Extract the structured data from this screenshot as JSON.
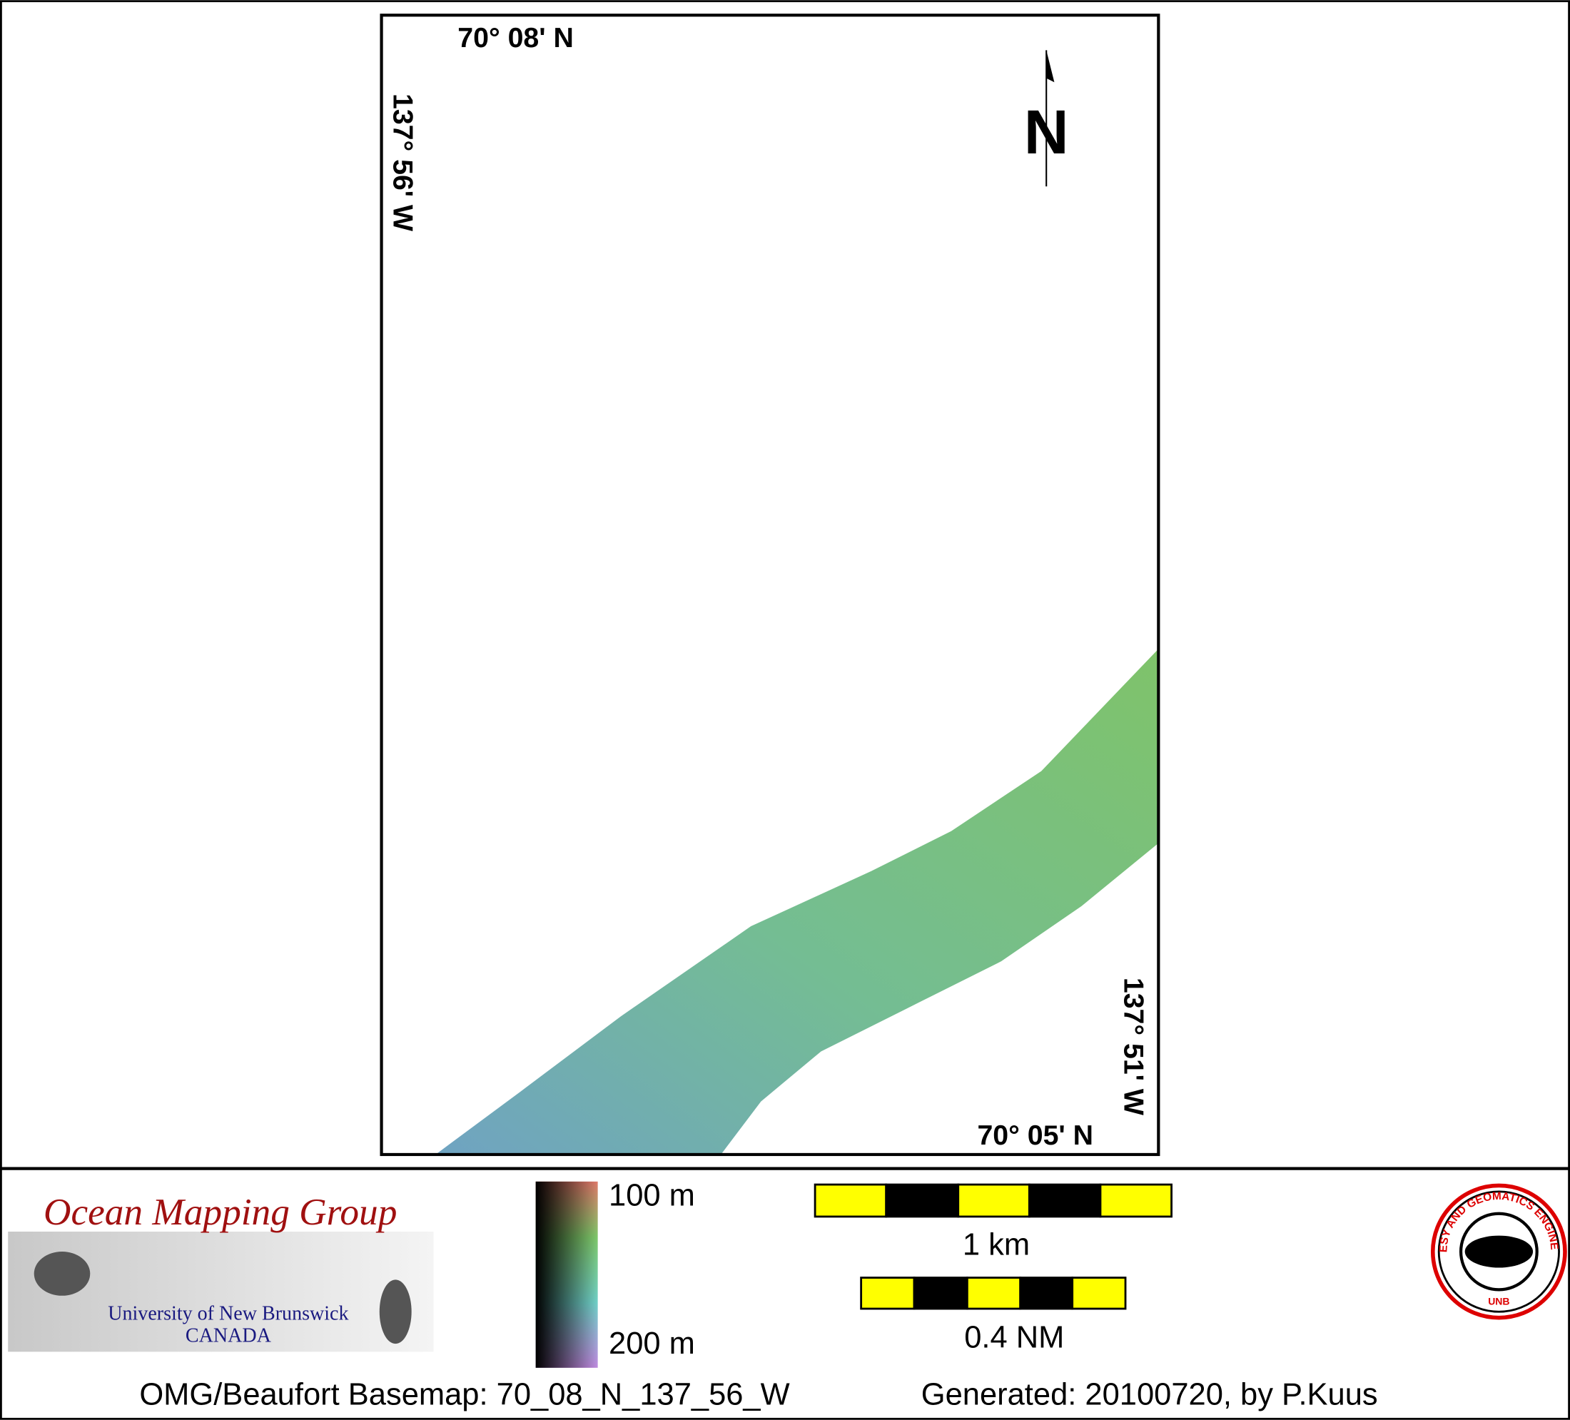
{
  "map": {
    "lat_top": "70° 08' N",
    "lon_left": "137° 56' W",
    "lat_bottom": "70° 05' N",
    "lon_right": "137° 51' W",
    "north": "N"
  },
  "legend": {
    "depth_top": "100 m",
    "depth_bottom": "200 m",
    "scale_km": "1 km",
    "scale_nm": "0.4 NM"
  },
  "logo": {
    "group": "Ocean Mapping Group",
    "university": "University of New Brunswick",
    "country": "CANADA",
    "seal_ring": "GEODESY AND GEOMATICS ENGINEERING",
    "seal_base": "UNB"
  },
  "footer": {
    "basemap": "OMG/Beaufort Basemap: 70_08_N_137_56_W",
    "generated": "Generated: 20100720, by P.Kuus"
  }
}
